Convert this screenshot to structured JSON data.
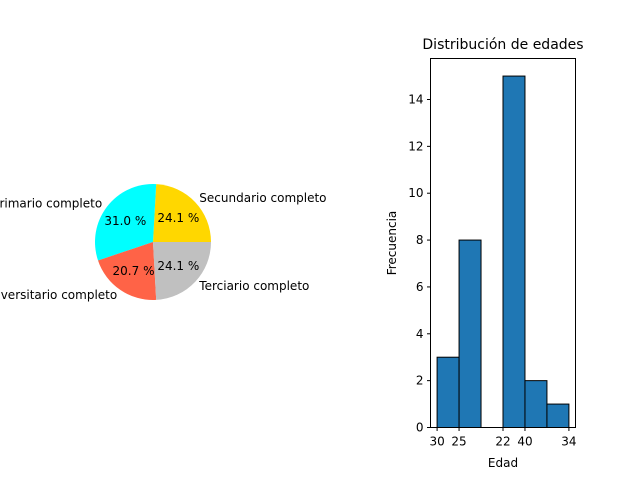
{
  "chart_data": [
    {
      "type": "pie",
      "labels": [
        "Secundario completo",
        "Primario completo",
        "Universitario completo",
        "Terciario completo"
      ],
      "values": [
        24.1,
        31.0,
        20.7,
        24.1
      ],
      "pct_labels": [
        "24.1 %",
        "31.0 %",
        "20.7 %",
        "24.1 %"
      ],
      "colors": [
        "#ffd700",
        "#00ffff",
        "#ff6347",
        "#c0c0c0"
      ]
    },
    {
      "type": "bar",
      "title": "Distribución de edades",
      "xlabel": "Edad",
      "ylabel": "Frecuencia",
      "bins": [
        {
          "bin": 1,
          "value": 3
        },
        {
          "bin": 2,
          "value": 8
        },
        {
          "bin": 3,
          "value": 0
        },
        {
          "bin": 4,
          "value": 15
        },
        {
          "bin": 5,
          "value": 2
        },
        {
          "bin": 6,
          "value": 1
        }
      ],
      "ylim": [
        0,
        15.75
      ],
      "yticks": [
        0,
        2,
        4,
        6,
        8,
        10,
        12,
        14
      ],
      "xtick_labels": [
        "30",
        "25",
        "22",
        "40",
        "34"
      ],
      "bar_color": "#1f77b4",
      "edge_color": "#000000"
    }
  ]
}
